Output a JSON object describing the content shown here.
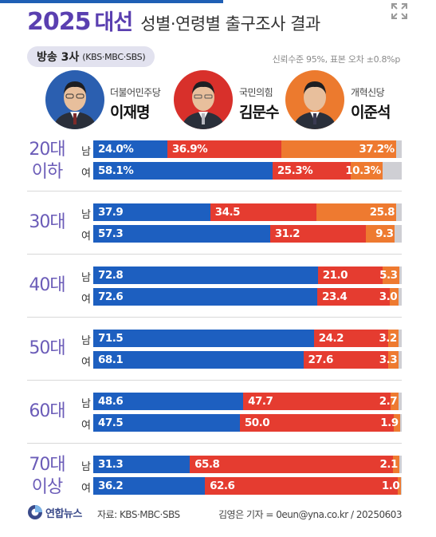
{
  "header": {
    "title_year": "2025",
    "title_keyword": "대선",
    "title_rest": "성별·연령별 출구조사 결과",
    "broadcast_main": "방송 3사",
    "broadcast_sub": "(KBS·MBC·SBS)",
    "confidence": "신뢰수준 95%, 표본 오차 ±0.8%p"
  },
  "candidates": [
    {
      "party": "더불어민주당",
      "name": "이재명",
      "color": "#1d5fc0",
      "photo_bg": "#2b5fb0",
      "icon": "candidate-portrait"
    },
    {
      "party": "국민의힘",
      "name": "김문수",
      "color": "#e53c30",
      "photo_bg": "#d8302b",
      "icon": "candidate-portrait"
    },
    {
      "party": "개혁신당",
      "name": "이준석",
      "color": "#ee7a30",
      "photo_bg": "#ec7a2e",
      "icon": "candidate-portrait"
    }
  ],
  "chart_data": {
    "type": "bar",
    "stacked": true,
    "orientation": "horizontal",
    "series_names": [
      "이재명",
      "김문수",
      "이준석"
    ],
    "colors": [
      "#1d5fc0",
      "#e53c30",
      "#ee7a30",
      "#cfcfd4"
    ],
    "xlim": [
      0,
      100
    ],
    "groups": [
      {
        "age": [
          "20대",
          "이하"
        ],
        "rows": [
          {
            "sex": "남",
            "values": [
              24.0,
              36.9,
              37.2
            ],
            "labels": [
              "24.0%",
              "36.9%",
              "37.2%"
            ]
          },
          {
            "sex": "여",
            "values": [
              58.1,
              25.3,
              10.3
            ],
            "labels": [
              "58.1%",
              "25.3%",
              "10.3%"
            ]
          }
        ]
      },
      {
        "age": [
          "30대"
        ],
        "rows": [
          {
            "sex": "남",
            "values": [
              37.9,
              34.5,
              25.8
            ],
            "labels": [
              "37.9",
              "34.5",
              "25.8"
            ]
          },
          {
            "sex": "여",
            "values": [
              57.3,
              31.2,
              9.3
            ],
            "labels": [
              "57.3",
              "31.2",
              "9.3"
            ]
          }
        ]
      },
      {
        "age": [
          "40대"
        ],
        "rows": [
          {
            "sex": "남",
            "values": [
              72.8,
              21.0,
              5.3
            ],
            "labels": [
              "72.8",
              "21.0",
              "5.3"
            ]
          },
          {
            "sex": "여",
            "values": [
              72.6,
              23.4,
              3.0
            ],
            "labels": [
              "72.6",
              "23.4",
              "3.0"
            ]
          }
        ]
      },
      {
        "age": [
          "50대"
        ],
        "rows": [
          {
            "sex": "남",
            "values": [
              71.5,
              24.2,
              3.2
            ],
            "labels": [
              "71.5",
              "24.2",
              "3.2"
            ]
          },
          {
            "sex": "여",
            "values": [
              68.1,
              27.6,
              3.3
            ],
            "labels": [
              "68.1",
              "27.6",
              "3.3"
            ]
          }
        ]
      },
      {
        "age": [
          "60대"
        ],
        "rows": [
          {
            "sex": "남",
            "values": [
              48.6,
              47.7,
              2.7
            ],
            "labels": [
              "48.6",
              "47.7",
              "2.7"
            ]
          },
          {
            "sex": "여",
            "values": [
              47.5,
              50.0,
              1.9
            ],
            "labels": [
              "47.5",
              "50.0",
              "1.9"
            ]
          }
        ]
      },
      {
        "age": [
          "70대",
          "이상"
        ],
        "rows": [
          {
            "sex": "남",
            "values": [
              31.3,
              65.8,
              2.1
            ],
            "labels": [
              "31.3",
              "65.8",
              "2.1"
            ]
          },
          {
            "sex": "여",
            "values": [
              36.2,
              62.6,
              1.0
            ],
            "labels": [
              "36.2",
              "62.6",
              "1.0"
            ]
          }
        ]
      }
    ]
  },
  "footer": {
    "logo_text": "연합뉴스",
    "source": "자료: KBS·MBC·SBS",
    "credit": "김영은 기자 = 0eun@yna.co.kr / 20250603"
  }
}
